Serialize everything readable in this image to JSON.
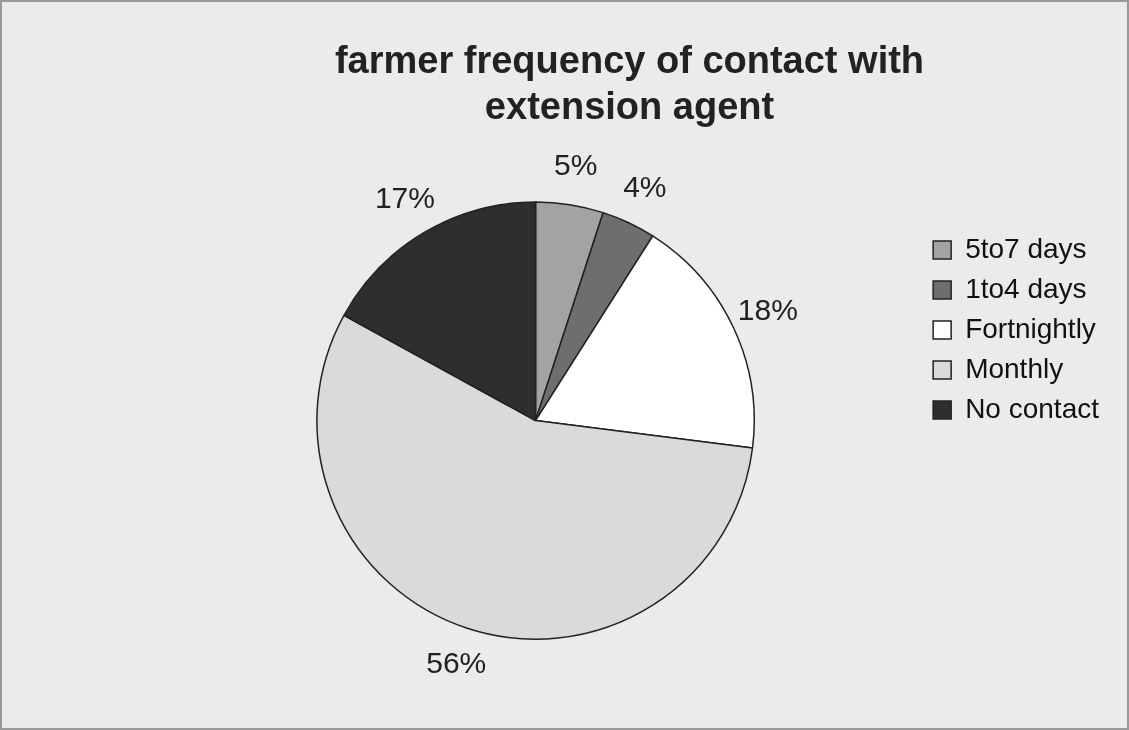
{
  "chart_data": {
    "type": "pie",
    "title": "farmer frequency of contact with extension agent",
    "categories": [
      "5to7 days",
      "1to4 days",
      "Fortnightly",
      "Monthly",
      "No contact"
    ],
    "values": [
      5,
      4,
      18,
      56,
      17
    ],
    "colors": [
      "#a3a3a3",
      "#6e6e6e",
      "#ffffff",
      "#dadada",
      "#2e2e2e"
    ],
    "value_labels": [
      "5%",
      "4%",
      "18%",
      "56%",
      "17%"
    ],
    "legend": "right"
  }
}
